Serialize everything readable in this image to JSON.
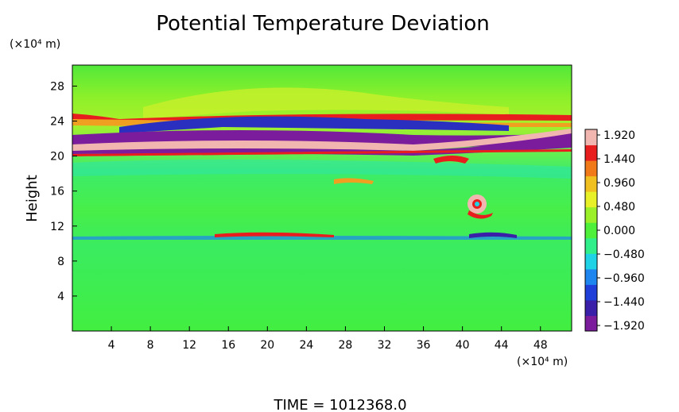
{
  "chart_data": {
    "type": "heatmap",
    "title": "Potential Temperature Deviation",
    "ylabel": "Height",
    "xlabel": "",
    "x_unit": "(×10⁴ m)",
    "y_unit": "(×10⁴ m)",
    "x_ticks": [
      "4",
      "8",
      "12",
      "16",
      "20",
      "24",
      "28",
      "32",
      "36",
      "40",
      "44",
      "48"
    ],
    "y_ticks": [
      "4",
      "8",
      "12",
      "16",
      "20",
      "24",
      "28"
    ],
    "xlim": [
      0,
      51.2
    ],
    "ylim": [
      0,
      30.4
    ],
    "colorbar": {
      "ticks": [
        "1.920",
        "1.440",
        "0.960",
        "0.480",
        "0.000",
        "−0.480",
        "−0.960",
        "−1.440",
        "−1.920"
      ],
      "range": [
        -1.92,
        1.92
      ],
      "colors": [
        "#7a1c9c",
        "#3a1fa8",
        "#1f3fd8",
        "#1f86f0",
        "#1fd2e6",
        "#30ef8a",
        "#4ef03a",
        "#9cf02a",
        "#e8f028",
        "#f0c020",
        "#f07a1a",
        "#e81e1e",
        "#f2b6b0"
      ]
    },
    "footer": "TIME = 1012368.0",
    "features": [
      {
        "kind": "band",
        "y_center": 21.5,
        "value": -1.92
      },
      {
        "kind": "band",
        "y_center": 20.4,
        "value": 1.92
      },
      {
        "kind": "band",
        "y_center": 23.3,
        "value": -1.6
      },
      {
        "kind": "band",
        "y_center": 24.0,
        "value": 1.2
      },
      {
        "kind": "band",
        "y_center": 10.5,
        "value": -0.6
      },
      {
        "kind": "vortex",
        "x": 41,
        "y": 14.2,
        "value": 1.92
      }
    ]
  }
}
